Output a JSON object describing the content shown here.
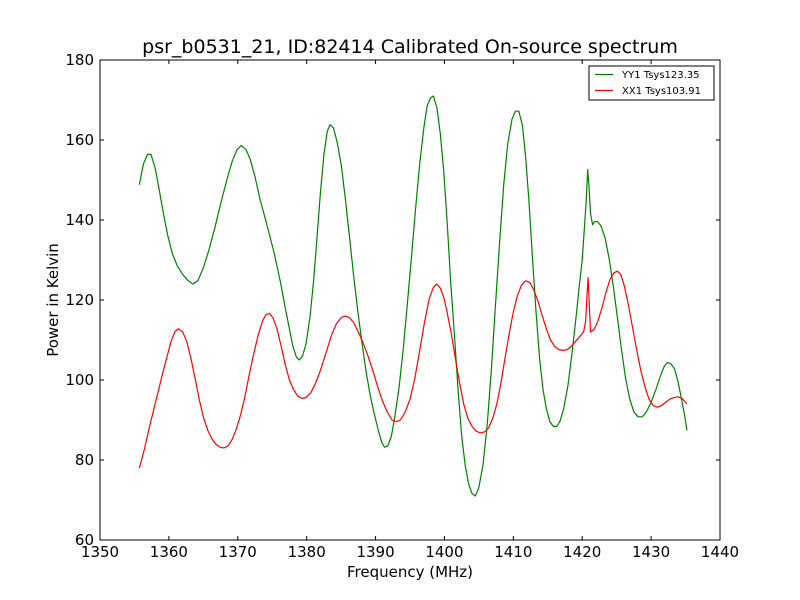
{
  "chart_data": {
    "type": "line",
    "title": "psr_b0531_21, ID:82414 Calibrated On-source spectrum",
    "xlabel": "Frequency (MHz)",
    "ylabel": "Power in Kelvin",
    "xlim": [
      1350,
      1440
    ],
    "ylim": [
      60,
      180
    ],
    "xticks": [
      1350,
      1360,
      1370,
      1380,
      1390,
      1400,
      1410,
      1420,
      1430,
      1440
    ],
    "yticks": [
      60,
      80,
      100,
      120,
      140,
      160,
      180
    ],
    "grid": false,
    "legend_position": "top-right",
    "series": [
      {
        "name": "YY1 Tsys123.35",
        "color": "#008000",
        "points": [
          [
            1355.7,
            148.8
          ],
          [
            1356.3,
            154.0
          ],
          [
            1356.9,
            156.4
          ],
          [
            1357.4,
            156.4
          ],
          [
            1358.0,
            153.0
          ],
          [
            1358.6,
            147.6
          ],
          [
            1359.2,
            141.6
          ],
          [
            1359.8,
            136.4
          ],
          [
            1360.5,
            131.6
          ],
          [
            1361.2,
            128.6
          ],
          [
            1362.0,
            126.4
          ],
          [
            1362.8,
            124.8
          ],
          [
            1363.5,
            124.0
          ],
          [
            1364.2,
            124.8
          ],
          [
            1365.0,
            128.0
          ],
          [
            1365.8,
            132.4
          ],
          [
            1366.7,
            138.2
          ],
          [
            1367.5,
            144.0
          ],
          [
            1368.4,
            150.0
          ],
          [
            1369.2,
            154.8
          ],
          [
            1369.9,
            157.6
          ],
          [
            1370.5,
            158.6
          ],
          [
            1371.2,
            157.6
          ],
          [
            1371.8,
            155.2
          ],
          [
            1372.5,
            150.8
          ],
          [
            1373.2,
            145.4
          ],
          [
            1374.2,
            139.0
          ],
          [
            1375.3,
            131.6
          ],
          [
            1376.2,
            124.4
          ],
          [
            1376.9,
            118.0
          ],
          [
            1377.5,
            112.8
          ],
          [
            1378.0,
            108.4
          ],
          [
            1378.5,
            105.8
          ],
          [
            1378.9,
            105.0
          ],
          [
            1379.4,
            106.0
          ],
          [
            1379.9,
            109.0
          ],
          [
            1380.5,
            116.0
          ],
          [
            1381.0,
            124.8
          ],
          [
            1381.5,
            135.6
          ],
          [
            1382.0,
            146.8
          ],
          [
            1382.5,
            156.4
          ],
          [
            1383.0,
            162.2
          ],
          [
            1383.4,
            163.8
          ],
          [
            1383.9,
            163.0
          ],
          [
            1384.4,
            159.6
          ],
          [
            1385.0,
            154.0
          ],
          [
            1385.6,
            145.6
          ],
          [
            1386.2,
            136.0
          ],
          [
            1386.8,
            126.4
          ],
          [
            1387.4,
            117.6
          ],
          [
            1388.0,
            109.6
          ],
          [
            1388.6,
            102.4
          ],
          [
            1389.2,
            96.4
          ],
          [
            1389.8,
            91.6
          ],
          [
            1390.4,
            87.4
          ],
          [
            1390.9,
            84.4
          ],
          [
            1391.3,
            83.2
          ],
          [
            1391.8,
            83.6
          ],
          [
            1392.3,
            86.0
          ],
          [
            1392.8,
            90.8
          ],
          [
            1393.4,
            98.0
          ],
          [
            1394.0,
            107.4
          ],
          [
            1394.6,
            118.6
          ],
          [
            1395.2,
            130.6
          ],
          [
            1395.8,
            142.6
          ],
          [
            1396.4,
            153.8
          ],
          [
            1397.0,
            163.0
          ],
          [
            1397.5,
            168.6
          ],
          [
            1398.0,
            170.6
          ],
          [
            1398.4,
            171.0
          ],
          [
            1398.9,
            168.0
          ],
          [
            1399.4,
            161.6
          ],
          [
            1399.9,
            152.0
          ],
          [
            1400.4,
            139.2
          ],
          [
            1400.9,
            124.8
          ],
          [
            1401.5,
            110.0
          ],
          [
            1402.0,
            97.0
          ],
          [
            1402.5,
            86.0
          ],
          [
            1403.0,
            78.8
          ],
          [
            1403.5,
            74.0
          ],
          [
            1404.0,
            71.6
          ],
          [
            1404.5,
            71.0
          ],
          [
            1405.0,
            73.2
          ],
          [
            1405.6,
            78.8
          ],
          [
            1406.2,
            88.8
          ],
          [
            1406.8,
            102.4
          ],
          [
            1407.4,
            118.4
          ],
          [
            1408.0,
            134.4
          ],
          [
            1408.6,
            148.8
          ],
          [
            1409.2,
            159.2
          ],
          [
            1409.8,
            165.2
          ],
          [
            1410.3,
            167.2
          ],
          [
            1410.8,
            167.2
          ],
          [
            1411.3,
            163.8
          ],
          [
            1411.8,
            155.6
          ],
          [
            1412.3,
            143.8
          ],
          [
            1412.8,
            130.0
          ],
          [
            1413.3,
            116.8
          ],
          [
            1413.8,
            105.6
          ],
          [
            1414.3,
            97.6
          ],
          [
            1414.8,
            92.8
          ],
          [
            1415.3,
            89.6
          ],
          [
            1415.8,
            88.4
          ],
          [
            1416.3,
            88.4
          ],
          [
            1416.8,
            89.8
          ],
          [
            1417.3,
            92.8
          ],
          [
            1417.9,
            98.4
          ],
          [
            1418.5,
            106.4
          ],
          [
            1419.1,
            115.6
          ],
          [
            1419.6,
            124.0
          ],
          [
            1420.0,
            130.0
          ],
          [
            1420.3,
            137.6
          ],
          [
            1420.6,
            145.6
          ],
          [
            1420.8,
            152.6
          ],
          [
            1421.0,
            148.0
          ],
          [
            1421.2,
            141.6
          ],
          [
            1421.5,
            138.8
          ],
          [
            1421.8,
            139.6
          ],
          [
            1422.2,
            139.6
          ],
          [
            1422.7,
            138.6
          ],
          [
            1423.3,
            135.6
          ],
          [
            1423.9,
            130.4
          ],
          [
            1424.5,
            123.6
          ],
          [
            1425.1,
            115.6
          ],
          [
            1425.7,
            107.6
          ],
          [
            1426.3,
            100.4
          ],
          [
            1426.9,
            95.2
          ],
          [
            1427.5,
            92.0
          ],
          [
            1428.1,
            90.8
          ],
          [
            1428.7,
            90.8
          ],
          [
            1429.3,
            92.0
          ],
          [
            1430.0,
            94.4
          ],
          [
            1430.7,
            97.6
          ],
          [
            1431.3,
            100.8
          ],
          [
            1431.9,
            103.4
          ],
          [
            1432.4,
            104.4
          ],
          [
            1432.9,
            104.0
          ],
          [
            1433.4,
            102.8
          ],
          [
            1433.9,
            99.6
          ],
          [
            1434.4,
            95.4
          ],
          [
            1434.9,
            90.8
          ],
          [
            1435.2,
            87.4
          ]
        ]
      },
      {
        "name": "XX1 Tsys103.91",
        "color": "#ff0000",
        "points": [
          [
            1355.7,
            78.0
          ],
          [
            1356.4,
            82.4
          ],
          [
            1357.2,
            88.4
          ],
          [
            1358.0,
            94.0
          ],
          [
            1358.8,
            99.6
          ],
          [
            1359.6,
            105.0
          ],
          [
            1360.3,
            109.6
          ],
          [
            1360.9,
            112.2
          ],
          [
            1361.4,
            112.8
          ],
          [
            1362.0,
            112.0
          ],
          [
            1362.6,
            109.6
          ],
          [
            1363.2,
            105.4
          ],
          [
            1363.8,
            100.4
          ],
          [
            1364.4,
            95.2
          ],
          [
            1365.0,
            90.8
          ],
          [
            1365.6,
            87.6
          ],
          [
            1366.2,
            85.4
          ],
          [
            1366.8,
            84.0
          ],
          [
            1367.4,
            83.2
          ],
          [
            1368.0,
            83.0
          ],
          [
            1368.6,
            83.6
          ],
          [
            1369.2,
            85.2
          ],
          [
            1369.8,
            87.8
          ],
          [
            1370.4,
            91.2
          ],
          [
            1371.0,
            95.6
          ],
          [
            1371.6,
            100.8
          ],
          [
            1372.3,
            106.4
          ],
          [
            1373.0,
            111.4
          ],
          [
            1373.6,
            114.8
          ],
          [
            1374.1,
            116.4
          ],
          [
            1374.6,
            116.6
          ],
          [
            1375.1,
            115.6
          ],
          [
            1375.7,
            112.8
          ],
          [
            1376.3,
            108.4
          ],
          [
            1376.9,
            103.8
          ],
          [
            1377.5,
            100.0
          ],
          [
            1378.1,
            97.6
          ],
          [
            1378.7,
            96.0
          ],
          [
            1379.3,
            95.4
          ],
          [
            1379.9,
            95.6
          ],
          [
            1380.6,
            96.8
          ],
          [
            1381.3,
            99.2
          ],
          [
            1382.0,
            102.4
          ],
          [
            1382.8,
            106.8
          ],
          [
            1383.6,
            111.2
          ],
          [
            1384.3,
            114.0
          ],
          [
            1385.0,
            115.6
          ],
          [
            1385.6,
            116.0
          ],
          [
            1386.2,
            115.6
          ],
          [
            1386.8,
            114.4
          ],
          [
            1387.5,
            112.0
          ],
          [
            1388.2,
            109.2
          ],
          [
            1388.9,
            106.0
          ],
          [
            1389.6,
            102.4
          ],
          [
            1390.3,
            98.4
          ],
          [
            1391.0,
            94.8
          ],
          [
            1391.7,
            92.0
          ],
          [
            1392.4,
            90.0
          ],
          [
            1393.0,
            89.6
          ],
          [
            1393.6,
            90.0
          ],
          [
            1394.3,
            92.0
          ],
          [
            1395.0,
            95.2
          ],
          [
            1395.7,
            100.4
          ],
          [
            1396.4,
            107.2
          ],
          [
            1397.1,
            114.4
          ],
          [
            1397.8,
            120.4
          ],
          [
            1398.4,
            123.2
          ],
          [
            1398.9,
            124.0
          ],
          [
            1399.4,
            123.0
          ],
          [
            1399.9,
            120.6
          ],
          [
            1400.4,
            116.8
          ],
          [
            1401.0,
            111.6
          ],
          [
            1401.6,
            105.2
          ],
          [
            1402.2,
            99.2
          ],
          [
            1402.8,
            94.0
          ],
          [
            1403.4,
            90.4
          ],
          [
            1404.0,
            88.4
          ],
          [
            1404.6,
            87.2
          ],
          [
            1405.2,
            86.8
          ],
          [
            1405.8,
            87.0
          ],
          [
            1406.4,
            88.0
          ],
          [
            1407.0,
            90.4
          ],
          [
            1407.6,
            94.0
          ],
          [
            1408.2,
            99.2
          ],
          [
            1408.8,
            105.6
          ],
          [
            1409.4,
            111.6
          ],
          [
            1410.0,
            117.0
          ],
          [
            1410.6,
            121.2
          ],
          [
            1411.2,
            123.8
          ],
          [
            1411.8,
            124.8
          ],
          [
            1412.4,
            124.4
          ],
          [
            1413.0,
            122.4
          ],
          [
            1413.6,
            119.6
          ],
          [
            1414.2,
            116.0
          ],
          [
            1414.8,
            112.8
          ],
          [
            1415.4,
            110.0
          ],
          [
            1416.0,
            108.4
          ],
          [
            1416.6,
            107.6
          ],
          [
            1417.2,
            107.4
          ],
          [
            1417.8,
            107.6
          ],
          [
            1418.4,
            108.4
          ],
          [
            1419.0,
            109.6
          ],
          [
            1419.6,
            110.8
          ],
          [
            1420.2,
            112.0
          ],
          [
            1420.5,
            114.8
          ],
          [
            1420.7,
            121.2
          ],
          [
            1420.85,
            125.6
          ],
          [
            1421.0,
            120.0
          ],
          [
            1421.2,
            112.0
          ],
          [
            1421.7,
            112.6
          ],
          [
            1422.2,
            114.4
          ],
          [
            1422.8,
            117.6
          ],
          [
            1423.4,
            121.6
          ],
          [
            1424.0,
            125.0
          ],
          [
            1424.6,
            126.8
          ],
          [
            1425.1,
            127.2
          ],
          [
            1425.6,
            126.4
          ],
          [
            1426.1,
            123.6
          ],
          [
            1426.7,
            118.8
          ],
          [
            1427.3,
            113.2
          ],
          [
            1427.9,
            107.6
          ],
          [
            1428.5,
            102.4
          ],
          [
            1429.1,
            98.4
          ],
          [
            1429.7,
            95.2
          ],
          [
            1430.3,
            93.6
          ],
          [
            1430.9,
            93.2
          ],
          [
            1431.5,
            93.6
          ],
          [
            1432.1,
            94.4
          ],
          [
            1432.7,
            95.2
          ],
          [
            1433.3,
            95.6
          ],
          [
            1433.9,
            95.8
          ],
          [
            1434.5,
            95.4
          ],
          [
            1435.2,
            94.0
          ]
        ]
      }
    ]
  }
}
